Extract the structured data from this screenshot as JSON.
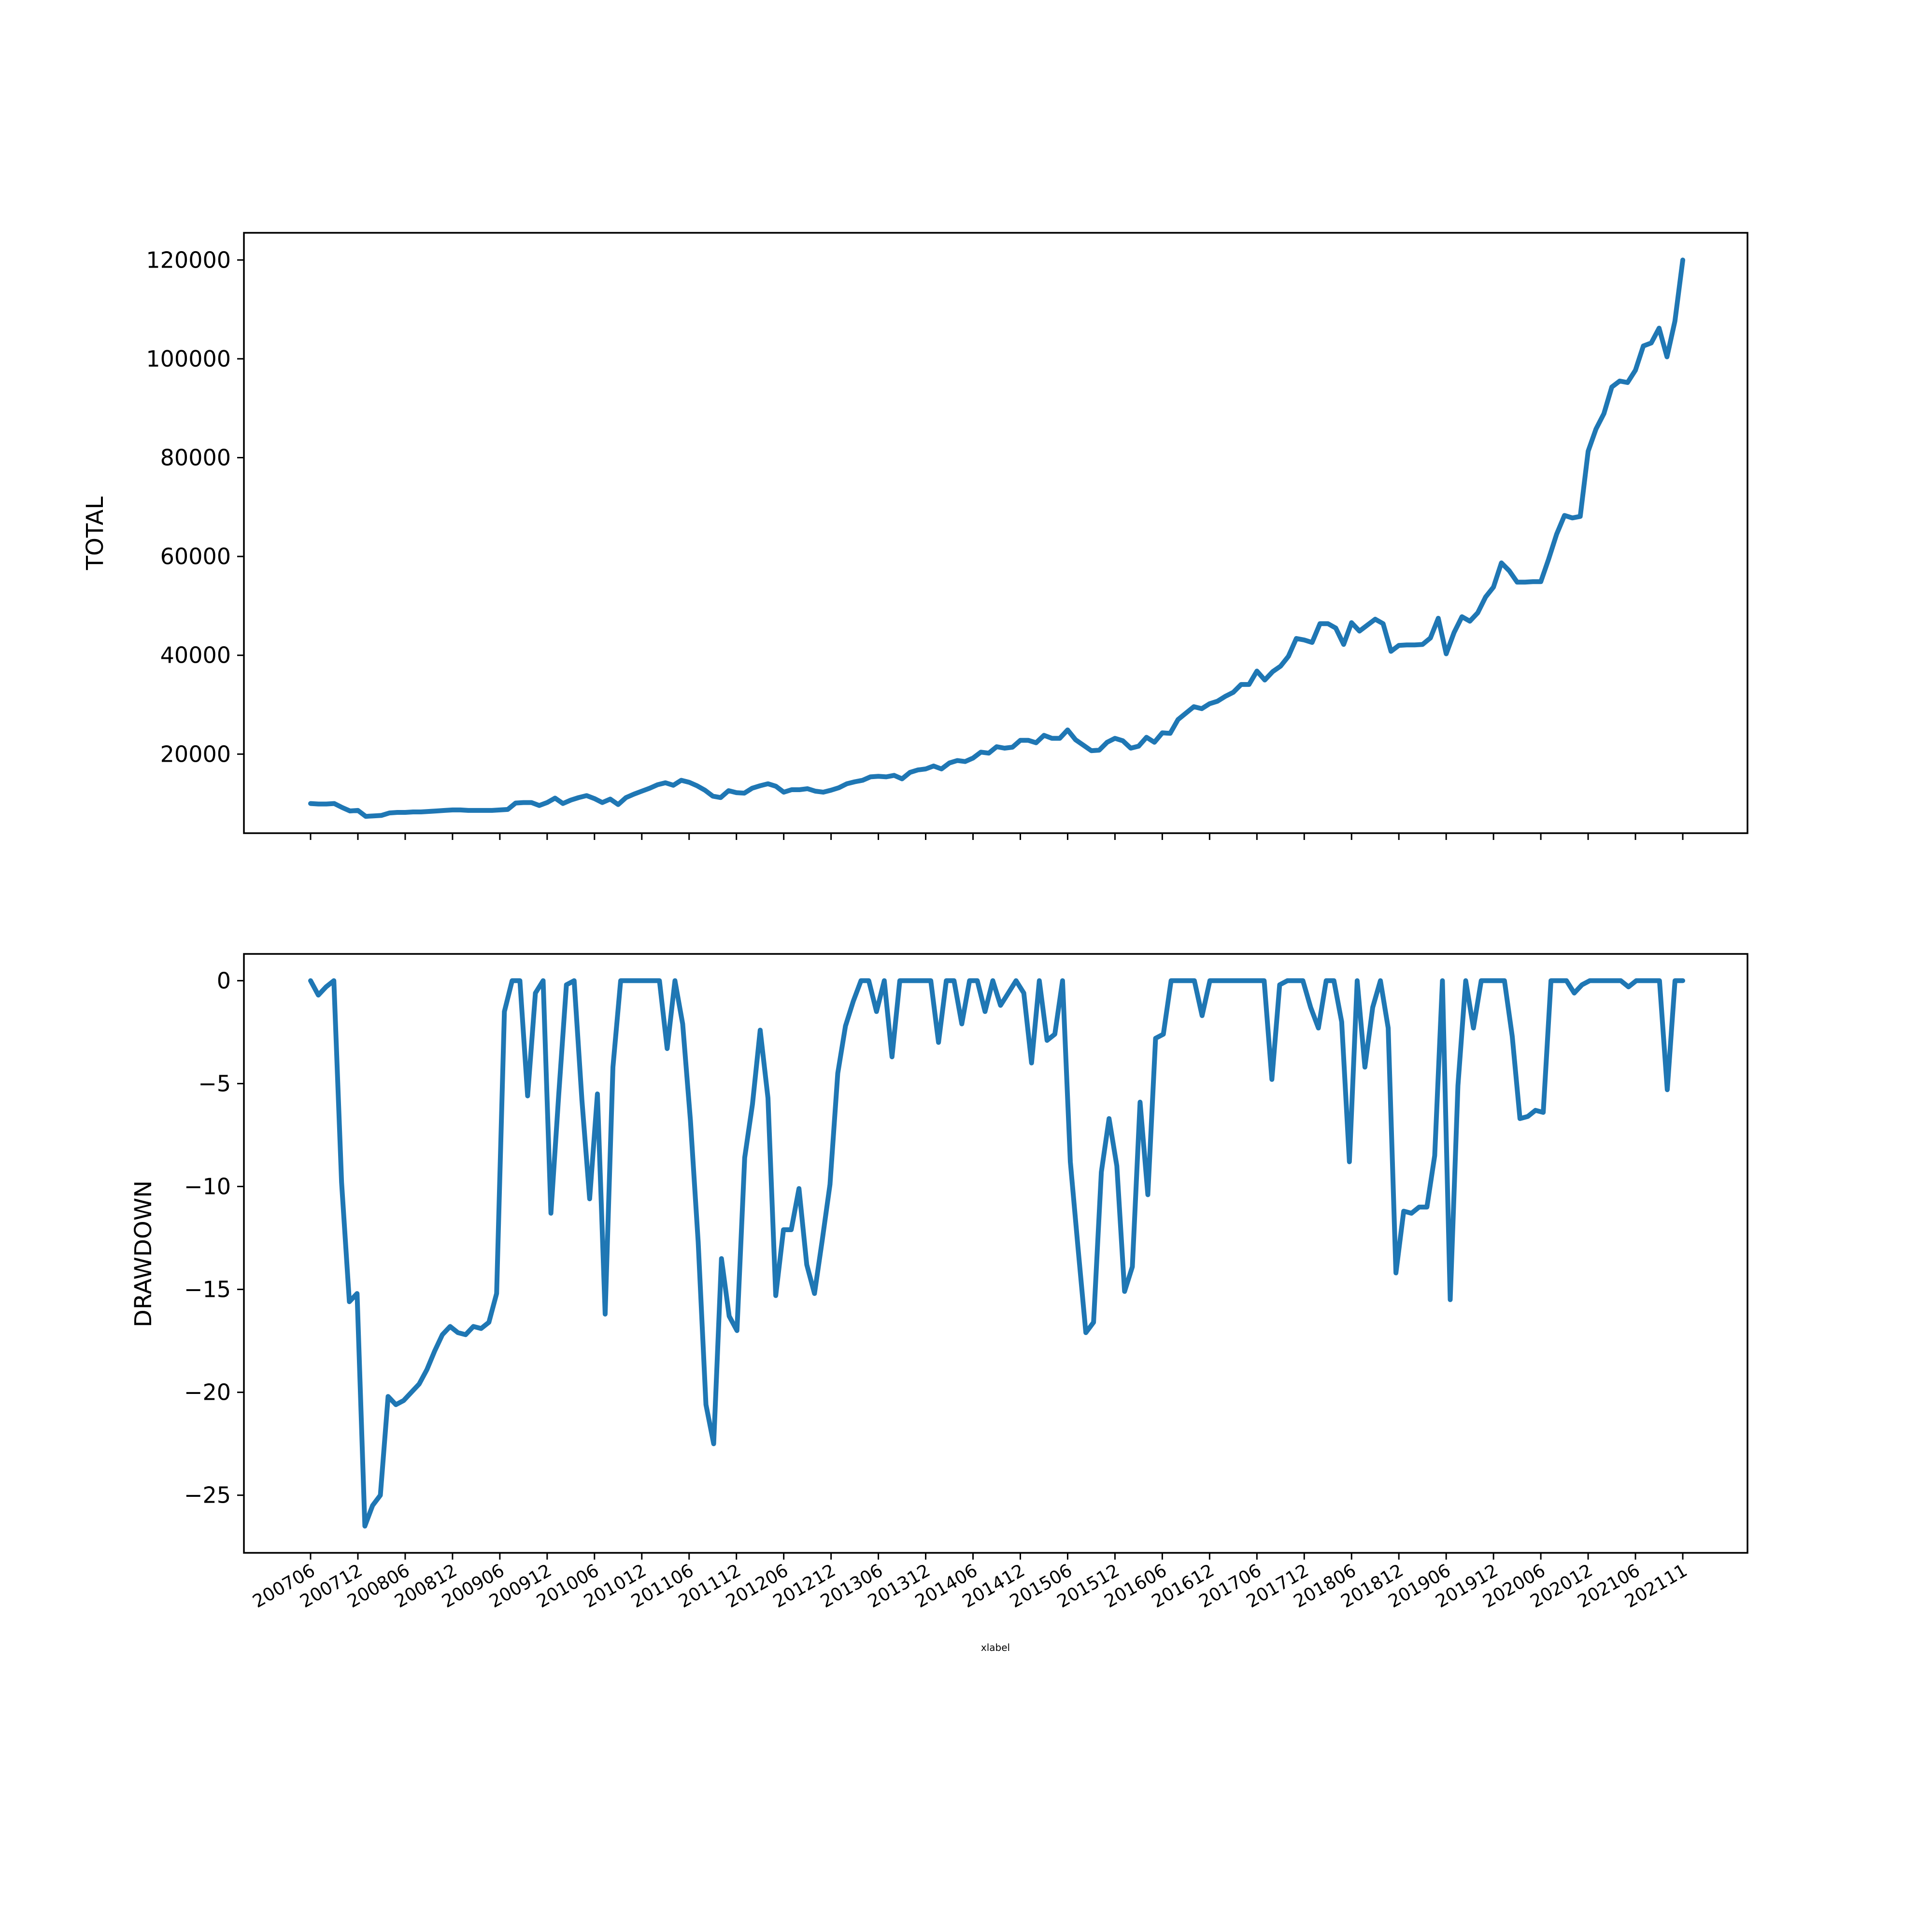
{
  "colors": {
    "series": "#1f77b4"
  },
  "chart_data": [
    {
      "type": "line",
      "ylabel": "TOTAL",
      "ylim": [
        4000,
        125500
      ],
      "yticks": [
        20000,
        40000,
        60000,
        80000,
        100000,
        120000
      ],
      "ytick_labels": [
        "20000",
        "40000",
        "60000",
        "80000",
        "100000",
        "120000"
      ],
      "xlabel": "",
      "grid": false,
      "series": [
        {
          "values": [
            10000,
            9900,
            9900,
            10000,
            9200,
            8500,
            8600,
            7400,
            7500,
            7600,
            8100,
            8200,
            8200,
            8300,
            8300,
            8400,
            8500,
            8600,
            8700,
            8700,
            8600,
            8600,
            8600,
            8600,
            8700,
            8800,
            10100,
            10200,
            10200,
            9600,
            10200,
            11100,
            10000,
            10700,
            11200,
            11600,
            11000,
            10200,
            10900,
            9800,
            11200,
            11900,
            12500,
            13100,
            13800,
            14200,
            13700,
            14700,
            14300,
            13600,
            12700,
            11500,
            11200,
            12600,
            12200,
            12100,
            13100,
            13600,
            14000,
            13500,
            12300,
            12800,
            12800,
            13000,
            12500,
            12300,
            12700,
            13200,
            14000,
            14400,
            14700,
            15400,
            15500,
            15400,
            15700,
            15000,
            16300,
            16800,
            17000,
            17600,
            17000,
            18200,
            18700,
            18500,
            19200,
            20400,
            20200,
            21500,
            21200,
            21400,
            22800,
            22800,
            22300,
            23800,
            23200,
            23200,
            24900,
            22900,
            21800,
            20700,
            20800,
            22400,
            23200,
            22700,
            21200,
            21600,
            23400,
            22400,
            24300,
            24200,
            27000,
            28300,
            29600,
            29200,
            30200,
            30700,
            31700,
            32500,
            34100,
            34100,
            36800,
            35000,
            36700,
            37800,
            39800,
            43400,
            43100,
            42600,
            46400,
            46400,
            45500,
            42200,
            46600,
            44900,
            46100,
            47300,
            46400,
            40800,
            42000,
            42100,
            42100,
            42200,
            43500,
            47500,
            40300,
            44600,
            47800,
            46900,
            48600,
            51800,
            53800,
            58700,
            57100,
            54800,
            54800,
            54900,
            54900,
            59500,
            64500,
            68300,
            67800,
            68100,
            81300,
            85800,
            88900,
            94300,
            95500,
            95200,
            97700,
            102600,
            103200,
            106200,
            100400,
            107600,
            120000
          ]
        }
      ]
    },
    {
      "type": "line",
      "ylabel": "DRAWDOWN",
      "ylim": [
        -27.8,
        1.3
      ],
      "yticks": [
        0,
        -5,
        -10,
        -15,
        -20,
        -25
      ],
      "ytick_labels": [
        "0",
        "−5",
        "−10",
        "−15",
        "−20",
        "−25"
      ],
      "xlabel": "xlabel",
      "grid": false,
      "series": [
        {
          "values": [
            0,
            -0.7,
            -0.3,
            0,
            -9.8,
            -15.6,
            -15.2,
            -26.5,
            -25.5,
            -25,
            -20.2,
            -20.6,
            -20.4,
            -20,
            -19.6,
            -18.9,
            -18,
            -17.2,
            -16.8,
            -17.1,
            -17.2,
            -16.8,
            -16.9,
            -16.6,
            -15.2,
            -1.5,
            0,
            0,
            -5.6,
            -0.6,
            0,
            -11.3,
            -5.6,
            -0.2,
            0,
            -5.8,
            -10.6,
            -5.5,
            -16.2,
            -4.2,
            0,
            0,
            0,
            0,
            0,
            0,
            -3.3,
            0,
            -2.1,
            -6.8,
            -12.7,
            -20.6,
            -22.5,
            -13.5,
            -16.3,
            -17,
            -8.6,
            -6,
            -2.4,
            -5.7,
            -15.3,
            -12.1,
            -12.1,
            -10.1,
            -13.8,
            -15.2,
            -12.6,
            -9.9,
            -4.5,
            -2.2,
            -1,
            0,
            0,
            -1.5,
            0,
            -3.7,
            0,
            0,
            0,
            0,
            0,
            -3,
            0,
            0,
            -2.1,
            0,
            0,
            -1.5,
            0,
            -1.2,
            -0.6,
            0,
            -0.6,
            -4,
            0,
            -2.9,
            -2.6,
            0,
            -8.8,
            -13,
            -17.1,
            -16.6,
            -9.3,
            -6.7,
            -9,
            -15.1,
            -13.9,
            -5.9,
            -10.4,
            -2.8,
            -2.6,
            0,
            0,
            0,
            0,
            -1.7,
            0,
            0,
            0,
            0,
            0,
            0,
            0,
            0,
            -4.8,
            -0.2,
            0,
            0,
            0,
            -1.3,
            -2.3,
            0,
            0,
            -2,
            -8.8,
            0,
            -4.2,
            -1.3,
            0,
            -2.3,
            -14.2,
            -11.2,
            -11.3,
            -11,
            -11,
            -8.5,
            0,
            -15.5,
            -5.1,
            0,
            -2.3,
            0,
            0,
            0,
            0,
            -2.7,
            -6.7,
            -6.6,
            -6.3,
            -6.4,
            0,
            0,
            0,
            -0.6,
            -0.2,
            0,
            0,
            0,
            0,
            0,
            -0.3,
            0,
            0,
            0,
            0,
            -5.3,
            0,
            0
          ]
        }
      ]
    }
  ],
  "x_tick_labels": [
    "200706",
    "200712",
    "200806",
    "200812",
    "200906",
    "200912",
    "201006",
    "201012",
    "201106",
    "201112",
    "201206",
    "201212",
    "201306",
    "201312",
    "201406",
    "201412",
    "201506",
    "201512",
    "201606",
    "201612",
    "201706",
    "201712",
    "201806",
    "201812",
    "201906",
    "201912",
    "202006",
    "202012",
    "202106",
    "202111"
  ]
}
